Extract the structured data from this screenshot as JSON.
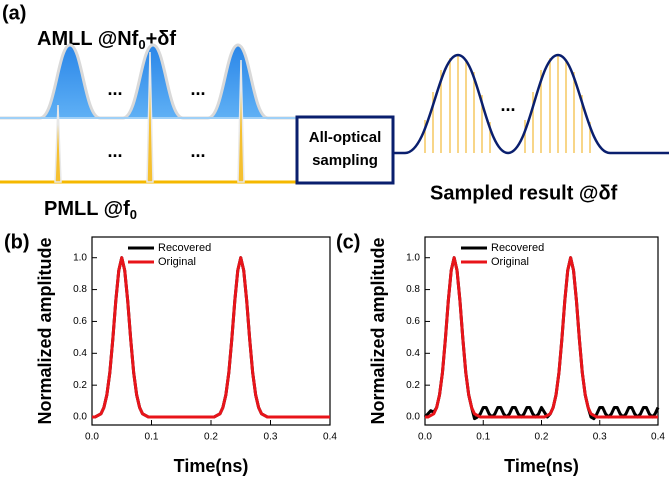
{
  "diagram": {
    "panel_label": "(a)",
    "amll_label": {
      "text": "AMLL @Nf",
      "subscript": "0",
      "suffix": "+δf"
    },
    "pmll_label": {
      "text": "PMLL @f",
      "subscript": "0"
    },
    "box_label": [
      "All-optical",
      "sampling"
    ],
    "result_label": "Sampled result @δf",
    "ellipsis": "..."
  },
  "chart_data": [
    {
      "type": "line",
      "panel_label": "(b)",
      "xlabel": "Time(ns)",
      "ylabel": "Normalized amplitude",
      "x": [
        0,
        0.005,
        0.01,
        0.015,
        0.02,
        0.025,
        0.03,
        0.035,
        0.04,
        0.045,
        0.05,
        0.055,
        0.06,
        0.065,
        0.07,
        0.075,
        0.08,
        0.085,
        0.09,
        0.095,
        0.1,
        0.105,
        0.11,
        0.115,
        0.12,
        0.125,
        0.13,
        0.135,
        0.14,
        0.145,
        0.15,
        0.155,
        0.16,
        0.165,
        0.17,
        0.175,
        0.18,
        0.185,
        0.19,
        0.195,
        0.2,
        0.205,
        0.21,
        0.215,
        0.22,
        0.225,
        0.23,
        0.235,
        0.24,
        0.245,
        0.25,
        0.255,
        0.26,
        0.265,
        0.27,
        0.275,
        0.28,
        0.285,
        0.29,
        0.295,
        0.3,
        0.305,
        0.31,
        0.315,
        0.32,
        0.325,
        0.33,
        0.335,
        0.34,
        0.345,
        0.35,
        0.355,
        0.36,
        0.365,
        0.37,
        0.375,
        0.38,
        0.385,
        0.39,
        0.395,
        0.4
      ],
      "series": [
        {
          "name": "Recovered",
          "color": "#000000",
          "values": [
            0,
            0,
            0.01,
            0.02,
            0.06,
            0.14,
            0.28,
            0.49,
            0.73,
            0.92,
            1,
            0.92,
            0.73,
            0.49,
            0.28,
            0.14,
            0.06,
            0.02,
            0.01,
            0,
            0,
            0,
            0,
            0,
            0,
            0,
            0,
            0,
            0,
            0,
            0,
            0,
            0,
            0,
            0,
            0,
            0,
            0,
            0,
            0,
            0,
            0,
            0.01,
            0.02,
            0.06,
            0.14,
            0.28,
            0.49,
            0.73,
            0.92,
            1,
            0.92,
            0.73,
            0.49,
            0.28,
            0.14,
            0.06,
            0.02,
            0.01,
            0,
            0,
            0,
            0,
            0,
            0,
            0,
            0,
            0,
            0,
            0,
            0,
            0,
            0,
            0,
            0,
            0,
            0,
            0,
            0,
            0,
            0
          ]
        },
        {
          "name": "Original",
          "color": "#e8141a",
          "values": [
            0,
            0,
            0.01,
            0.02,
            0.06,
            0.14,
            0.28,
            0.49,
            0.73,
            0.92,
            1,
            0.92,
            0.73,
            0.49,
            0.28,
            0.14,
            0.06,
            0.02,
            0.01,
            0,
            0,
            0,
            0,
            0,
            0,
            0,
            0,
            0,
            0,
            0,
            0,
            0,
            0,
            0,
            0,
            0,
            0,
            0,
            0,
            0,
            0,
            0,
            0.01,
            0.02,
            0.06,
            0.14,
            0.28,
            0.49,
            0.73,
            0.92,
            1,
            0.92,
            0.73,
            0.49,
            0.28,
            0.14,
            0.06,
            0.02,
            0.01,
            0,
            0,
            0,
            0,
            0,
            0,
            0,
            0,
            0,
            0,
            0,
            0,
            0,
            0,
            0,
            0,
            0,
            0,
            0,
            0,
            0,
            0
          ]
        }
      ],
      "xlim": [
        0,
        0.4
      ],
      "ylim": [
        -0.05,
        1.13
      ],
      "xticks": [
        {
          "value": 0,
          "label": "0.0"
        },
        0.1,
        0.2,
        0.3,
        0.4
      ],
      "yticks": [
        {
          "value": 0,
          "label": "0.0"
        },
        0.2,
        0.4,
        0.6,
        0.8,
        {
          "value": 1,
          "label": "1.0"
        }
      ],
      "legend": "upper left"
    },
    {
      "type": "line",
      "panel_label": "(c)",
      "xlabel": "Time(ns)",
      "ylabel": "Normalized amplitude",
      "x": [
        0,
        0.005,
        0.01,
        0.015,
        0.02,
        0.025,
        0.03,
        0.035,
        0.04,
        0.045,
        0.05,
        0.055,
        0.06,
        0.065,
        0.07,
        0.075,
        0.08,
        0.085,
        0.09,
        0.095,
        0.1,
        0.105,
        0.11,
        0.115,
        0.12,
        0.125,
        0.13,
        0.135,
        0.14,
        0.145,
        0.15,
        0.155,
        0.16,
        0.165,
        0.17,
        0.175,
        0.18,
        0.185,
        0.19,
        0.195,
        0.2,
        0.205,
        0.21,
        0.215,
        0.22,
        0.225,
        0.23,
        0.235,
        0.24,
        0.245,
        0.25,
        0.255,
        0.26,
        0.265,
        0.27,
        0.275,
        0.28,
        0.285,
        0.29,
        0.295,
        0.3,
        0.305,
        0.31,
        0.315,
        0.32,
        0.325,
        0.33,
        0.335,
        0.34,
        0.345,
        0.35,
        0.355,
        0.36,
        0.365,
        0.37,
        0.375,
        0.38,
        0.385,
        0.39,
        0.395,
        0.4
      ],
      "series": [
        {
          "name": "Recovered",
          "color": "#000000",
          "values": [
            0,
            0.02,
            0.04,
            0.03,
            0.06,
            0.14,
            0.28,
            0.49,
            0.73,
            0.92,
            1,
            0.92,
            0.73,
            0.49,
            0.28,
            0.14,
            0.06,
            -0.01,
            0,
            0.02,
            0.06,
            0.06,
            0.02,
            0,
            0.02,
            0.06,
            0.06,
            0.02,
            0,
            0.02,
            0.06,
            0.06,
            0.02,
            0,
            0.02,
            0.06,
            0.06,
            0.02,
            0,
            0.02,
            0.06,
            0.03,
            0,
            0.02,
            0.06,
            0.14,
            0.28,
            0.49,
            0.73,
            0.92,
            1,
            0.92,
            0.73,
            0.49,
            0.28,
            0.14,
            0.06,
            0,
            -0.01,
            0.02,
            0.06,
            0.06,
            0.02,
            0,
            0.02,
            0.06,
            0.06,
            0.02,
            0,
            0.02,
            0.06,
            0.06,
            0.02,
            0,
            0.02,
            0.06,
            0.06,
            0.02,
            0,
            0.02,
            0.06
          ]
        },
        {
          "name": "Original",
          "color": "#e8141a",
          "values": [
            0,
            0,
            0.01,
            0.02,
            0.06,
            0.14,
            0.28,
            0.49,
            0.73,
            0.92,
            1,
            0.92,
            0.73,
            0.49,
            0.28,
            0.14,
            0.06,
            0.02,
            0.01,
            0,
            0,
            0,
            0,
            0,
            0,
            0,
            0,
            0,
            0,
            0,
            0,
            0,
            0,
            0,
            0,
            0,
            0,
            0,
            0,
            0,
            0,
            0,
            0.01,
            0.02,
            0.06,
            0.14,
            0.28,
            0.49,
            0.73,
            0.92,
            1,
            0.92,
            0.73,
            0.49,
            0.28,
            0.14,
            0.06,
            0.02,
            0.01,
            0,
            0,
            0,
            0,
            0,
            0,
            0,
            0,
            0,
            0,
            0,
            0,
            0,
            0,
            0,
            0,
            0,
            0,
            0,
            0,
            0,
            0
          ]
        }
      ],
      "xlim": [
        0,
        0.4
      ],
      "ylim": [
        -0.05,
        1.13
      ],
      "xticks": [
        {
          "value": 0,
          "label": "0.0"
        },
        0.1,
        0.2,
        0.3,
        0.4
      ],
      "yticks": [
        {
          "value": 0,
          "label": "0.0"
        },
        0.2,
        0.4,
        0.6,
        0.8,
        {
          "value": 1,
          "label": "1.0"
        }
      ],
      "legend": "upper left"
    }
  ]
}
